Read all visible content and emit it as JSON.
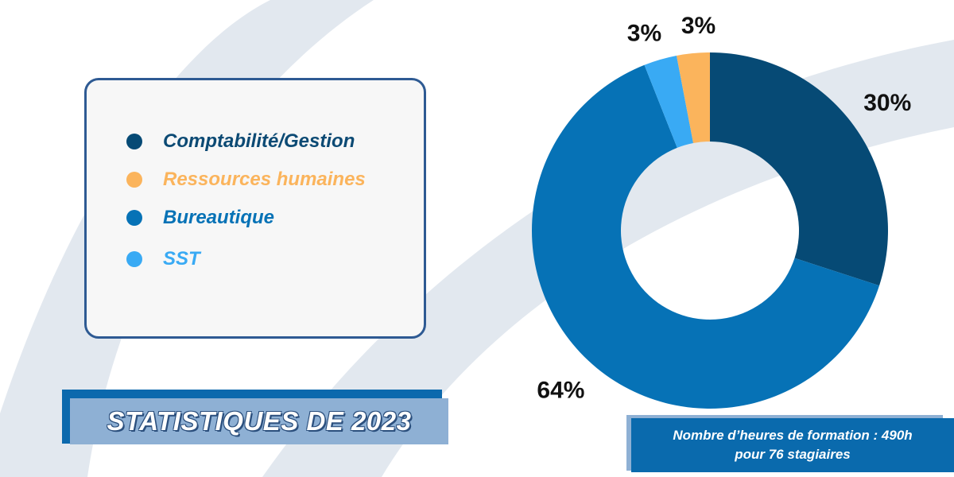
{
  "title": "STATISTIQUES DE 2023",
  "note": {
    "line1": "Nombre d’heures de formation : 490h",
    "line2": "pour 76 stagiaires"
  },
  "colors": {
    "background_swoosh": "#e2e8ef",
    "card_border": "#2e5a93",
    "card_fill": "#f7f7f7",
    "accent_blue": "#0c69ad",
    "accent_light": "#8eb0d4"
  },
  "chart_data": {
    "type": "pie",
    "subtype": "donut",
    "title": "",
    "legend_placement": "left",
    "categories": [
      "Comptabilité/Gestion",
      "Ressources humaines",
      "Bureautique",
      "SST"
    ],
    "values": [
      30,
      3,
      64,
      3
    ],
    "labels": [
      "30%",
      "3%",
      "64%",
      "3%"
    ],
    "colors": [
      "#064a75",
      "#fbb45c",
      "#0672b6",
      "#39aaf4"
    ],
    "draw_order": [
      0,
      2,
      3,
      1
    ],
    "legend_text_colors": [
      "#0c4a74",
      "#fbb45c",
      "#0672b6",
      "#39aaf4"
    ]
  }
}
